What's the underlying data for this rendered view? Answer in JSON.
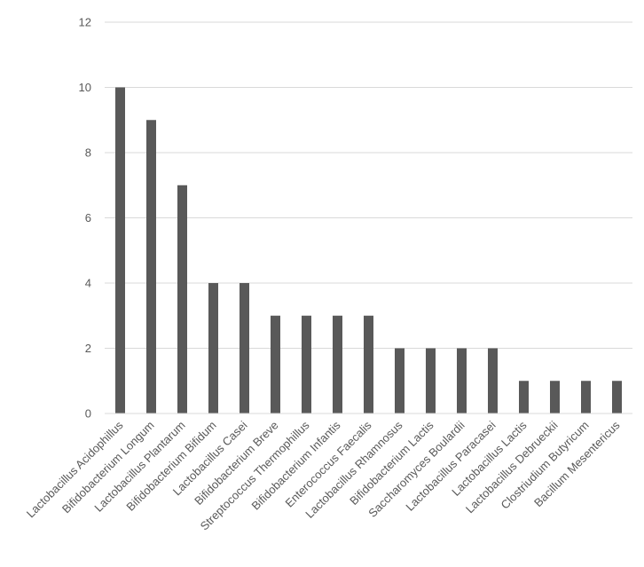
{
  "chart_data": {
    "type": "bar",
    "title": "",
    "xlabel": "",
    "ylabel": "",
    "categories": [
      "Lactobacillus Acidophillus",
      "Bifidobacterium Longum",
      "Lactobacillus Plantarum",
      "Bifidobacterium Bifidum",
      "Lactobacillus Casei",
      "Bifidobacterium Breve",
      "Streptococcus Thermophillus",
      "Bifidobacterium Infantis",
      "Enterococcus Faecalis",
      "Lactobacillus Rhamnosus",
      "Bifidobacterium Lactis",
      "Saccharomyces Boulardii",
      "Lactobacillus Paracasei",
      "Lactobacillus Lactis",
      "Lactobacillus Debrueckii",
      "Clostriudium Butyricum",
      "Bacillum Mesentericus"
    ],
    "values": [
      10,
      9,
      7,
      4,
      4,
      3,
      3,
      3,
      3,
      2,
      2,
      2,
      2,
      1,
      1,
      1,
      1
    ],
    "ylim": [
      0,
      12
    ],
    "yticks": [
      "0",
      "2",
      "4",
      "6",
      "8",
      "10",
      "12"
    ],
    "grid": true,
    "legend": "none",
    "bar_color": "#595959",
    "grid_color": "#d9d9d9",
    "text_color": "#595959"
  }
}
